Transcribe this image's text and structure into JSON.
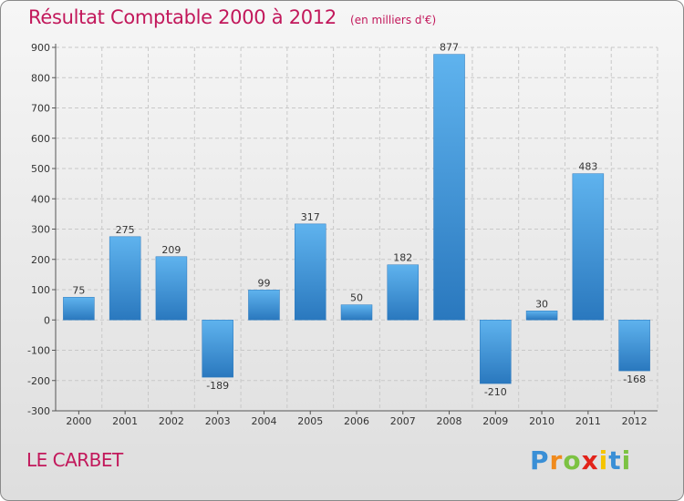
{
  "chart_data": {
    "type": "bar",
    "title": "Résultat Comptable 2000 à 2012",
    "subtitle": "(en milliers d'€)",
    "categories": [
      "2000",
      "2001",
      "2002",
      "2003",
      "2004",
      "2005",
      "2006",
      "2007",
      "2008",
      "2009",
      "2010",
      "2011",
      "2012"
    ],
    "values": [
      75,
      275,
      209,
      -189,
      99,
      317,
      50,
      182,
      877,
      -210,
      30,
      483,
      -168
    ],
    "value_labels": [
      "75",
      "275",
      "209",
      "-189",
      "99",
      "317",
      "50",
      "182",
      "877",
      "-210",
      "30",
      "483",
      "-168"
    ],
    "ylim": [
      -300,
      900
    ],
    "yticks": [
      -300,
      -200,
      -100,
      0,
      100,
      200,
      300,
      400,
      500,
      600,
      700,
      800,
      900
    ],
    "xlabel": "",
    "ylabel": "",
    "grid": "horizontal dashed",
    "bar_color": "#3a93d9",
    "bar_color_light": "#5fb3ee",
    "bar_color_dark": "#2a78be"
  },
  "place": "LE CARBET",
  "brand": {
    "letters": [
      "P",
      "r",
      "o",
      "x",
      "i",
      "t",
      "i"
    ],
    "colors": [
      "#3a8fd6",
      "#f08a1c",
      "#7cc242",
      "#e2231a",
      "#f5c400",
      "#3a8fd6",
      "#7cc242"
    ]
  },
  "colors": {
    "title": "#c2185b",
    "axis": "#333333",
    "grid": "#c8c8c8"
  }
}
